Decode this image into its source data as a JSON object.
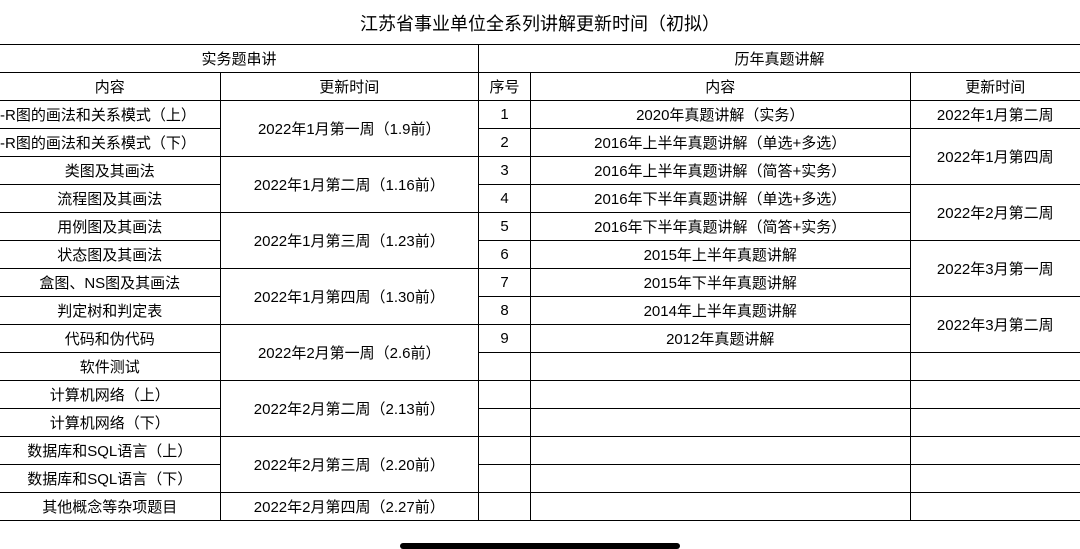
{
  "title": "江苏省事业单位全系列讲解更新时间（初拟）",
  "left": {
    "section_header": "实务题串讲",
    "headers": {
      "c1": "内容",
      "c2": "更新时间"
    },
    "rows": [
      {
        "content": "-R图的画法和关系模式（上）",
        "time": "2022年1月第一周（1.9前）",
        "span": 2
      },
      {
        "content": "-R图的画法和关系模式（下）"
      },
      {
        "content": "类图及其画法",
        "time": "2022年1月第二周（1.16前）",
        "span": 2
      },
      {
        "content": "流程图及其画法"
      },
      {
        "content": "用例图及其画法",
        "time": "2022年1月第三周（1.23前）",
        "span": 2
      },
      {
        "content": "状态图及其画法"
      },
      {
        "content": "盒图、NS图及其画法",
        "time": "2022年1月第四周（1.30前）",
        "span": 2
      },
      {
        "content": "判定树和判定表"
      },
      {
        "content": "代码和伪代码",
        "time": "2022年2月第一周（2.6前）",
        "span": 2
      },
      {
        "content": "软件测试"
      },
      {
        "content": "计算机网络（上）",
        "time": "2022年2月第二周（2.13前）",
        "span": 2
      },
      {
        "content": "计算机网络（下）"
      },
      {
        "content": "数据库和SQL语言（上）",
        "time": "2022年2月第三周（2.20前）",
        "span": 2
      },
      {
        "content": "数据库和SQL语言（下）"
      },
      {
        "content": "其他概念等杂项题目",
        "time": "2022年2月第四周（2.27前）",
        "span": 1
      }
    ]
  },
  "right": {
    "section_header": "历年真题讲解",
    "headers": {
      "c1": "序号",
      "c2": "内容",
      "c3": "更新时间"
    },
    "rows": [
      {
        "seq": "1",
        "content": "2020年真题讲解（实务）",
        "time": "2022年1月第二周",
        "span": 1
      },
      {
        "seq": "2",
        "content": "2016年上半年真题讲解（单选+多选）",
        "time": "2022年1月第四周",
        "span": 2
      },
      {
        "seq": "3",
        "content": "2016年上半年真题讲解（简答+实务）"
      },
      {
        "seq": "4",
        "content": "2016年下半年真题讲解（单选+多选）",
        "time": "2022年2月第二周",
        "span": 2
      },
      {
        "seq": "5",
        "content": "2016年下半年真题讲解（简答+实务）"
      },
      {
        "seq": "6",
        "content": "2015年上半年真题讲解",
        "time": "2022年3月第一周",
        "span": 2
      },
      {
        "seq": "7",
        "content": "2015年下半年真题讲解"
      },
      {
        "seq": "8",
        "content": "2014年上半年真题讲解",
        "time": "2022年3月第二周",
        "span": 2
      },
      {
        "seq": "9",
        "content": "2012年真题讲解"
      },
      {
        "seq": "",
        "content": "",
        "time": "",
        "span": 1
      },
      {
        "seq": "",
        "content": "",
        "time": "",
        "span": 1
      },
      {
        "seq": "",
        "content": "",
        "time": "",
        "span": 1
      },
      {
        "seq": "",
        "content": "",
        "time": "",
        "span": 1
      },
      {
        "seq": "",
        "content": "",
        "time": "",
        "span": 1
      },
      {
        "seq": "",
        "content": "",
        "time": "",
        "span": 1
      }
    ]
  },
  "colors": {
    "border": "#000000",
    "text": "#000000",
    "background": "#ffffff"
  }
}
